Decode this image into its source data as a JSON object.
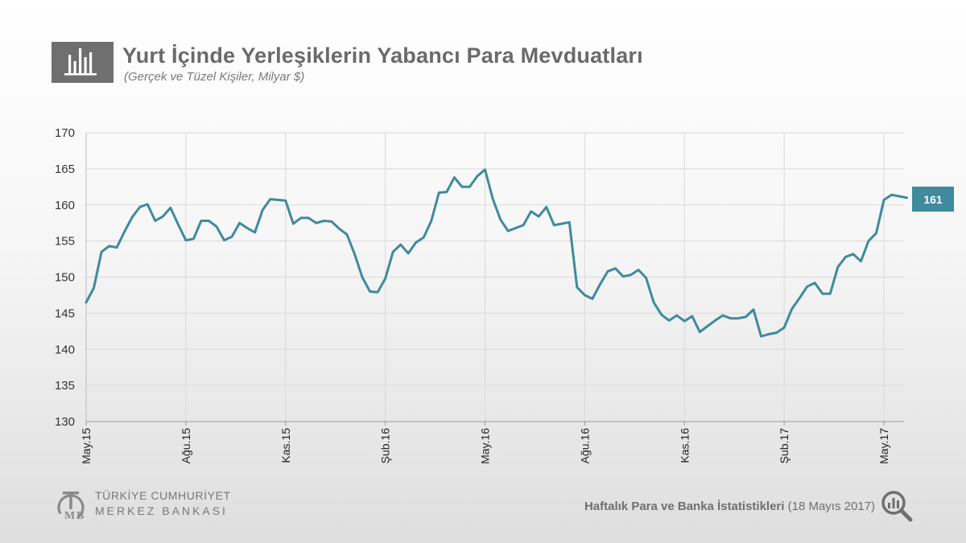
{
  "header": {
    "title": "Yurt İçinde Yerleşiklerin Yabancı Para Mevduatları",
    "subtitle": "(Gerçek ve Tüzel Kişiler, Milyar $)",
    "icon": "bar-chart-icon"
  },
  "latest_value_badge": "161",
  "logo": {
    "line1": "TÜRKİYE CUMHURİYET",
    "line2": "MERKEZ BANKASI",
    "mark": "TCMB"
  },
  "footer": {
    "source_bold": "Haftalık Para ve Banka İstatistikleri",
    "source_date": " (18 Mayıs 2017)",
    "icon": "magnifier-chart-icon"
  },
  "colors": {
    "line": "#3f8a9d",
    "badge": "#3f8a9d",
    "title": "#6a6a6a",
    "icon_bg": "#6f6f6f"
  },
  "chart_data": {
    "type": "line",
    "title": "Yurt İçinde Yerleşiklerin Yabancı Para Mevduatları",
    "subtitle": "(Gerçek ve Tüzel Kişiler, Milyar $)",
    "xlabel": "",
    "ylabel": "",
    "ylim": [
      130,
      170
    ],
    "yticks": [
      130,
      135,
      140,
      145,
      150,
      155,
      160,
      165,
      170
    ],
    "grid": true,
    "frequency": "weekly",
    "x_tick_labels": [
      "May.15",
      "Ağu.15",
      "Kas.15",
      "Şub.16",
      "May.16",
      "Ağu.16",
      "Kas.16",
      "Şub.17",
      "May.17"
    ],
    "x_tick_week_index": [
      0,
      13,
      26,
      39,
      52,
      65,
      78,
      91,
      104
    ],
    "series": [
      {
        "values": [
          146.5,
          148.5,
          153.5,
          154.3,
          154.1,
          156.3,
          158.3,
          159.7,
          160.1,
          157.8,
          158.4,
          159.6,
          157.3,
          155.1,
          155.3,
          157.8,
          157.8,
          157.0,
          155.1,
          155.6,
          157.5,
          156.8,
          156.2,
          159.3,
          160.8,
          160.7,
          160.6,
          157.4,
          158.2,
          158.2,
          157.5,
          157.8,
          157.7,
          156.7,
          155.9,
          153.2,
          150.0,
          148.0,
          147.9,
          149.8,
          153.5,
          154.5,
          153.3,
          154.8,
          155.5,
          157.8,
          161.7,
          161.8,
          163.8,
          162.5,
          162.5,
          164.0,
          164.9,
          160.9,
          158.0,
          156.4,
          156.8,
          157.2,
          159.1,
          158.4,
          159.7,
          157.2,
          157.4,
          157.6,
          148.6,
          147.5,
          147.0,
          149.0,
          150.8,
          151.2,
          150.1,
          150.3,
          151.0,
          149.9,
          146.5,
          144.8,
          144.0,
          144.7,
          143.9,
          144.6,
          142.4,
          143.2,
          144.0,
          144.7,
          144.3,
          144.3,
          144.5,
          145.5,
          141.8,
          142.1,
          142.3,
          143.0,
          145.6,
          147.1,
          148.7,
          149.2,
          147.7,
          147.7,
          151.4,
          152.8,
          153.2,
          152.2,
          155.0,
          156.1,
          160.7,
          161.4,
          161.2,
          161.0
        ]
      }
    ]
  }
}
